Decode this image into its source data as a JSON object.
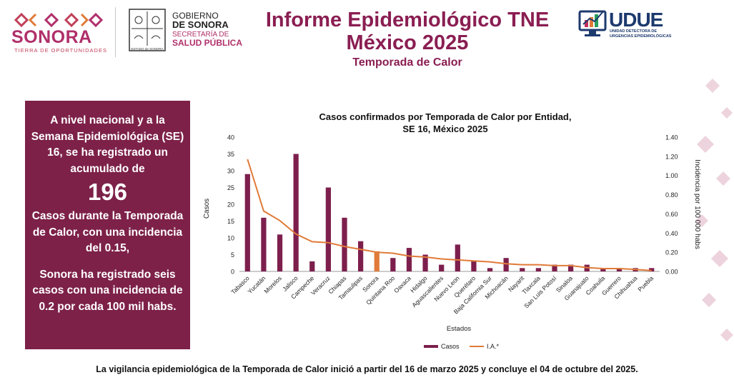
{
  "header": {
    "sonora_logo": "SONORA",
    "sonora_tagline": "TIERRA DE OPORTUNIDADES",
    "gobierno_line1": "GOBIERNO",
    "gobierno_line2": "DE SONORA",
    "secretaria_line1": "SECRETARÍA DE",
    "secretaria_line2": "SALUD PÚBLICA",
    "seal_caption": "ESTADO de SONORA",
    "title_line1": "Informe Epidemiológico TNE",
    "title_line2": "México 2025",
    "subtitle": "Temporada de Calor",
    "udue_logo": "UDUE",
    "udue_sub1": "UNIDAD DETECTORA DE",
    "udue_sub2": "URGENCIAS EPIDEMIOLÓGICAS"
  },
  "summary": {
    "text1": "A nivel nacional y a la Semana Epidemiológica (SE) 16, se ha registrado un acumulado de",
    "total": "196",
    "text2": "Casos durante la Temporada de Calor, con una incidencia del  0.15,",
    "text3": "Sonora ha registrado seis casos con una incidencia de 0.2 por cada 100 mil habs."
  },
  "chart_data": {
    "type": "bar",
    "title_line1": "Casos confirmados por Temporada de Calor por Entidad,",
    "title_line2": "SE 16, México 2025",
    "xlabel": "Estados",
    "ylabel": "Casos",
    "y2label": "Incidencia por 100 000 habs",
    "ylim": [
      0,
      40
    ],
    "y2lim": [
      0,
      1.4
    ],
    "yticks": [
      "0",
      "5",
      "10",
      "15",
      "20",
      "25",
      "30",
      "35",
      "40"
    ],
    "y2ticks": [
      "0.00",
      "0.20",
      "0.40",
      "0.60",
      "0.80",
      "1.00",
      "1.20",
      "1.40"
    ],
    "categories": [
      "Tabasco",
      "Yucatán",
      "Morelos",
      "Jalisco",
      "Campeche",
      "Veracruz",
      "Chiapas",
      "Tamaulipas",
      "Sonora",
      "Quintana Roo",
      "Oaxaca",
      "Hidalgo",
      "Aguascalientes",
      "Nuevo Leon",
      "Querétaro",
      "Baja California Sur",
      "Michoacán",
      "Nayarit",
      "Tlaxcala",
      "San Luis Potosí",
      "Sinaloa",
      "Guanajuato",
      "Coahuila",
      "Guerrero",
      "Chihuahua",
      "Puebla"
    ],
    "highlight": "Sonora",
    "series": [
      {
        "name": "Casos",
        "type": "bar",
        "color": "#7d1f4d",
        "highlight_color": "#e07b39",
        "values": [
          29,
          16,
          11,
          35,
          3,
          25,
          16,
          9,
          6,
          4,
          7,
          5,
          2,
          8,
          3,
          1,
          4,
          1,
          1,
          2,
          2,
          2,
          1,
          1,
          1,
          1
        ]
      },
      {
        "name": "I.A.*",
        "type": "line",
        "axis": "right",
        "color": "#e07b39",
        "values": [
          1.17,
          0.63,
          0.53,
          0.39,
          0.31,
          0.3,
          0.26,
          0.23,
          0.2,
          0.19,
          0.16,
          0.15,
          0.13,
          0.12,
          0.11,
          0.1,
          0.08,
          0.07,
          0.07,
          0.06,
          0.06,
          0.04,
          0.03,
          0.03,
          0.02,
          0.01
        ]
      }
    ],
    "legend_position": "bottom"
  },
  "footer": {
    "note": "La vigilancia epidemiológica de la Temporada de Calor inició a partir del 16 de marzo 2025 y concluye el 04 de octubre del 2025."
  }
}
